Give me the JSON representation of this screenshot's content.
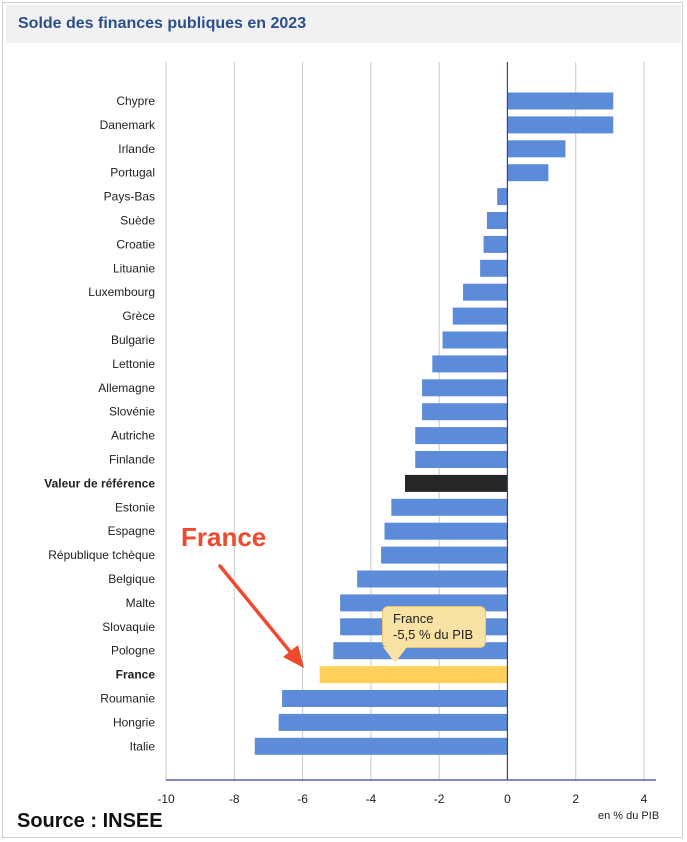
{
  "chart_data": {
    "type": "bar",
    "orientation": "horizontal",
    "title": "Solde des finances publiques en 2023",
    "xlabel": "en % du PIB",
    "xlim": [
      -10,
      4
    ],
    "xticks": [
      -10,
      -8,
      -6,
      -4,
      -2,
      0,
      2,
      4
    ],
    "grid": true,
    "categories": [
      "Chypre",
      "Danemark",
      "Irlande",
      "Portugal",
      "Pays-Bas",
      "Suède",
      "Croatie",
      "Lituanie",
      "Luxembourg",
      "Grèce",
      "Bulgarie",
      "Lettonie",
      "Allemagne",
      "Slovénie",
      "Autriche",
      "Finlande",
      "Valeur de référence",
      "Estonie",
      "Espagne",
      "République tchèque",
      "Belgique",
      "Malte",
      "Slovaquie",
      "Pologne",
      "France",
      "Roumanie",
      "Hongrie",
      "Italie"
    ],
    "values": [
      3.1,
      3.1,
      1.7,
      1.2,
      -0.3,
      -0.6,
      -0.7,
      -0.8,
      -1.3,
      -1.6,
      -1.9,
      -2.2,
      -2.5,
      -2.5,
      -2.7,
      -2.7,
      -3.0,
      -3.4,
      -3.6,
      -3.7,
      -4.4,
      -4.9,
      -4.9,
      -5.1,
      -5.5,
      -6.6,
      -6.7,
      -7.4
    ],
    "highlight": {
      "France": "#ffd15a",
      "Valeur de référence": "#262626"
    },
    "bold_categories": [
      "Valeur de référence",
      "France"
    ],
    "bar_color": "#5b8bd9",
    "axis_color": "#3c3c9a",
    "tooltip": {
      "line1": "France",
      "line2": "-5,5 % du PIB"
    },
    "annotation": "France"
  },
  "source": "Source : INSEE"
}
